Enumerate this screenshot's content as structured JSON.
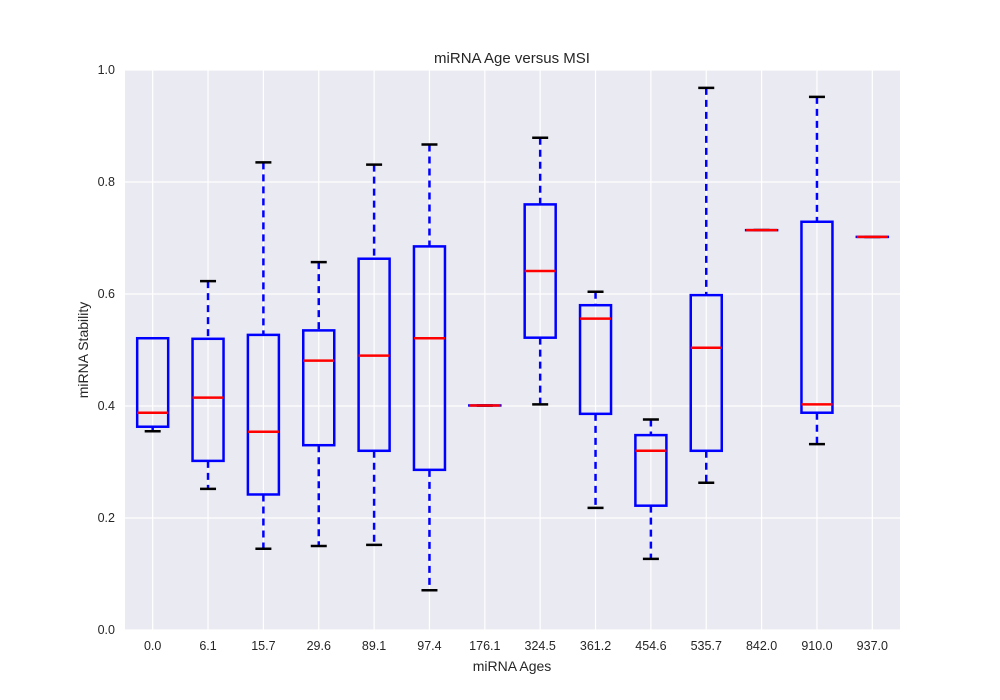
{
  "chart_data": {
    "type": "boxplot",
    "title": "miRNA Age versus MSI",
    "xlabel": "miRNA Ages",
    "ylabel": "miRNA Stability",
    "ylim": [
      0.0,
      1.0
    ],
    "yticks": [
      "0.0",
      "0.2",
      "0.4",
      "0.6",
      "0.8",
      "1.0"
    ],
    "grid": true,
    "categories": [
      "0.0",
      "6.1",
      "15.7",
      "29.6",
      "89.1",
      "97.4",
      "176.1",
      "324.5",
      "361.2",
      "454.6",
      "535.7",
      "842.0",
      "910.0",
      "937.0"
    ],
    "boxes": [
      {
        "category": "0.0",
        "whisker_low": 0.355,
        "q1": 0.363,
        "median": 0.388,
        "q3": 0.521,
        "whisker_high": 0.521
      },
      {
        "category": "6.1",
        "whisker_low": 0.252,
        "q1": 0.302,
        "median": 0.415,
        "q3": 0.52,
        "whisker_high": 0.623
      },
      {
        "category": "15.7",
        "whisker_low": 0.145,
        "q1": 0.242,
        "median": 0.354,
        "q3": 0.527,
        "whisker_high": 0.835
      },
      {
        "category": "29.6",
        "whisker_low": 0.15,
        "q1": 0.33,
        "median": 0.481,
        "q3": 0.535,
        "whisker_high": 0.657
      },
      {
        "category": "89.1",
        "whisker_low": 0.152,
        "q1": 0.32,
        "median": 0.49,
        "q3": 0.663,
        "whisker_high": 0.831
      },
      {
        "category": "97.4",
        "whisker_low": 0.071,
        "q1": 0.286,
        "median": 0.521,
        "q3": 0.685,
        "whisker_high": 0.867
      },
      {
        "category": "176.1",
        "whisker_low": 0.401,
        "q1": 0.401,
        "median": 0.401,
        "q3": 0.401,
        "whisker_high": 0.401
      },
      {
        "category": "324.5",
        "whisker_low": 0.403,
        "q1": 0.522,
        "median": 0.641,
        "q3": 0.76,
        "whisker_high": 0.879
      },
      {
        "category": "361.2",
        "whisker_low": 0.218,
        "q1": 0.386,
        "median": 0.556,
        "q3": 0.58,
        "whisker_high": 0.604
      },
      {
        "category": "454.6",
        "whisker_low": 0.127,
        "q1": 0.222,
        "median": 0.32,
        "q3": 0.348,
        "whisker_high": 0.376
      },
      {
        "category": "535.7",
        "whisker_low": 0.263,
        "q1": 0.32,
        "median": 0.504,
        "q3": 0.598,
        "whisker_high": 0.968
      },
      {
        "category": "842.0",
        "whisker_low": 0.714,
        "q1": 0.714,
        "median": 0.714,
        "q3": 0.714,
        "whisker_high": 0.714
      },
      {
        "category": "910.0",
        "whisker_low": 0.332,
        "q1": 0.388,
        "median": 0.403,
        "q3": 0.729,
        "whisker_high": 0.952
      },
      {
        "category": "937.0",
        "whisker_low": 0.702,
        "q1": 0.702,
        "median": 0.702,
        "q3": 0.702,
        "whisker_high": 0.702
      }
    ],
    "colors": {
      "background": "#eaeaf2",
      "grid": "#ffffff",
      "box": "#0000ff",
      "median": "#ff0000",
      "caps": "#000000"
    }
  }
}
